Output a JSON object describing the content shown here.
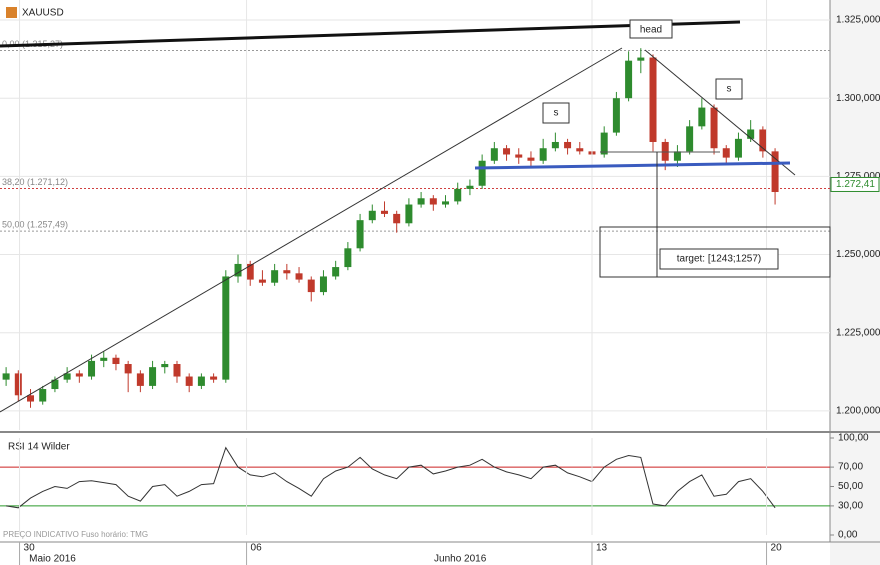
{
  "chart_data": [
    {
      "type": "candlestick",
      "title": "XAUUSD",
      "up_color": "#2e8b2e",
      "down_color": "#c0392b",
      "candles": [
        [
          1210,
          1214,
          1208,
          1212
        ],
        [
          1212,
          1213,
          1203,
          1205
        ],
        [
          1205,
          1207,
          1201,
          1203
        ],
        [
          1203,
          1208,
          1202,
          1207
        ],
        [
          1207,
          1211,
          1206,
          1210
        ],
        [
          1210,
          1214,
          1209,
          1212
        ],
        [
          1212,
          1213,
          1209,
          1211
        ],
        [
          1211,
          1218,
          1210,
          1216
        ],
        [
          1216,
          1219,
          1214,
          1217
        ],
        [
          1217,
          1218,
          1213,
          1215
        ],
        [
          1215,
          1216,
          1206,
          1212
        ],
        [
          1212,
          1213,
          1206,
          1208
        ],
        [
          1208,
          1216,
          1207,
          1214
        ],
        [
          1214,
          1216,
          1212,
          1215
        ],
        [
          1215,
          1216,
          1209,
          1211
        ],
        [
          1211,
          1212,
          1206,
          1208
        ],
        [
          1208,
          1212,
          1207,
          1211
        ],
        [
          1211,
          1212,
          1209,
          1210
        ],
        [
          1210,
          1245,
          1209,
          1243
        ],
        [
          1243,
          1250,
          1241,
          1247
        ],
        [
          1247,
          1248,
          1240,
          1242
        ],
        [
          1242,
          1245,
          1240,
          1241
        ],
        [
          1241,
          1247,
          1240,
          1245
        ],
        [
          1245,
          1247,
          1242,
          1244
        ],
        [
          1244,
          1246,
          1241,
          1242
        ],
        [
          1242,
          1243,
          1235,
          1238
        ],
        [
          1238,
          1245,
          1237,
          1243
        ],
        [
          1243,
          1248,
          1242,
          1246
        ],
        [
          1246,
          1254,
          1245,
          1252
        ],
        [
          1252,
          1263,
          1251,
          1261
        ],
        [
          1261,
          1266,
          1260,
          1264
        ],
        [
          1264,
          1267,
          1262,
          1263
        ],
        [
          1263,
          1264,
          1257,
          1260
        ],
        [
          1260,
          1268,
          1259,
          1266
        ],
        [
          1266,
          1270,
          1265,
          1268
        ],
        [
          1268,
          1269,
          1264,
          1266
        ],
        [
          1266,
          1269,
          1265,
          1267
        ],
        [
          1267,
          1273,
          1266,
          1271
        ],
        [
          1271,
          1274,
          1269,
          1272
        ],
        [
          1272,
          1282,
          1271,
          1280
        ],
        [
          1280,
          1286,
          1279,
          1284
        ],
        [
          1284,
          1285,
          1280,
          1282
        ],
        [
          1282,
          1284,
          1279,
          1281
        ],
        [
          1281,
          1283,
          1278,
          1280
        ],
        [
          1280,
          1287,
          1279,
          1284
        ],
        [
          1284,
          1289,
          1283,
          1286
        ],
        [
          1286,
          1287,
          1282,
          1284
        ],
        [
          1284,
          1286,
          1282,
          1283
        ],
        [
          1283,
          1284,
          1279,
          1282
        ],
        [
          1282,
          1291,
          1281,
          1289
        ],
        [
          1289,
          1302,
          1288,
          1300
        ],
        [
          1300,
          1315,
          1299,
          1312
        ],
        [
          1312,
          1316,
          1308,
          1313
        ],
        [
          1313,
          1314,
          1283,
          1286
        ],
        [
          1286,
          1287,
          1277,
          1280
        ],
        [
          1280,
          1285,
          1278,
          1283
        ],
        [
          1283,
          1293,
          1282,
          1291
        ],
        [
          1291,
          1300,
          1290,
          1297
        ],
        [
          1297,
          1298,
          1282,
          1284
        ],
        [
          1284,
          1285,
          1279,
          1281
        ],
        [
          1281,
          1289,
          1280,
          1287
        ],
        [
          1287,
          1293,
          1286,
          1290
        ],
        [
          1290,
          1291,
          1281,
          1283
        ],
        [
          1283,
          1284,
          1266,
          1270
        ]
      ],
      "ylim": [
        1193.9,
        1331.4
      ],
      "yticks": [
        {
          "value": 1325,
          "label": "1.325,000"
        },
        {
          "value": 1300,
          "label": "1.300,000"
        },
        {
          "value": 1275,
          "label": "1.275,000"
        },
        {
          "value": 1250,
          "label": "1.250,000"
        },
        {
          "value": 1225,
          "label": "1.225,000"
        },
        {
          "value": 1200,
          "label": "1.200,000"
        }
      ],
      "grid": true,
      "fib_levels": [
        {
          "value": 1315.27,
          "label": "0,00 (1.315,27)",
          "color": "#999999"
        },
        {
          "value": 1271.12,
          "label": "38,20 (1.271,12)",
          "color": "#d04040"
        },
        {
          "value": 1257.49,
          "label": "50,00 (1.257,49)",
          "color": "#999999"
        }
      ],
      "last_price": {
        "value": 1272.41,
        "label": "1.272,41"
      },
      "annotations": [
        "head",
        "s",
        "s",
        "target: [1243;1257)"
      ]
    },
    {
      "type": "line",
      "title": "RSI 14 Wilder",
      "color": "#333333",
      "values": [
        30,
        28,
        38,
        45,
        50,
        48,
        55,
        56,
        54,
        52,
        40,
        35,
        50,
        52,
        40,
        45,
        52,
        53,
        90,
        70,
        62,
        60,
        64,
        55,
        48,
        40,
        58,
        66,
        70,
        80,
        68,
        62,
        58,
        70,
        72,
        63,
        66,
        70,
        72,
        78,
        70,
        65,
        62,
        58,
        70,
        72,
        64,
        60,
        55,
        70,
        78,
        82,
        80,
        32,
        30,
        45,
        55,
        62,
        40,
        42,
        55,
        58,
        45,
        28
      ],
      "ylim": [
        0,
        100
      ],
      "yticks": [
        {
          "value": 100,
          "label": "100,00"
        },
        {
          "value": 70,
          "label": "70,00"
        },
        {
          "value": 50,
          "label": "50,00"
        },
        {
          "value": 30,
          "label": "30,00"
        },
        {
          "value": 0,
          "label": "0,00"
        }
      ],
      "levels": [
        {
          "value": 70,
          "color": "#cc2222"
        },
        {
          "value": 30,
          "color": "#2a9a2a"
        }
      ],
      "xlim": [
        -0.5,
        67.5
      ],
      "xticks": [
        {
          "value": 1.1,
          "label": "30"
        },
        {
          "value": 19.7,
          "label": "06"
        },
        {
          "value": 48,
          "label": "13"
        },
        {
          "value": 62.3,
          "label": "20"
        }
      ],
      "month_labels": [
        {
          "value": 3.8,
          "label": "Maio 2016"
        },
        {
          "value": 37.2,
          "label": "Junho 2016"
        }
      ],
      "footer": "PREÇO INDICATIVO   Fuso horário: TMG"
    }
  ]
}
